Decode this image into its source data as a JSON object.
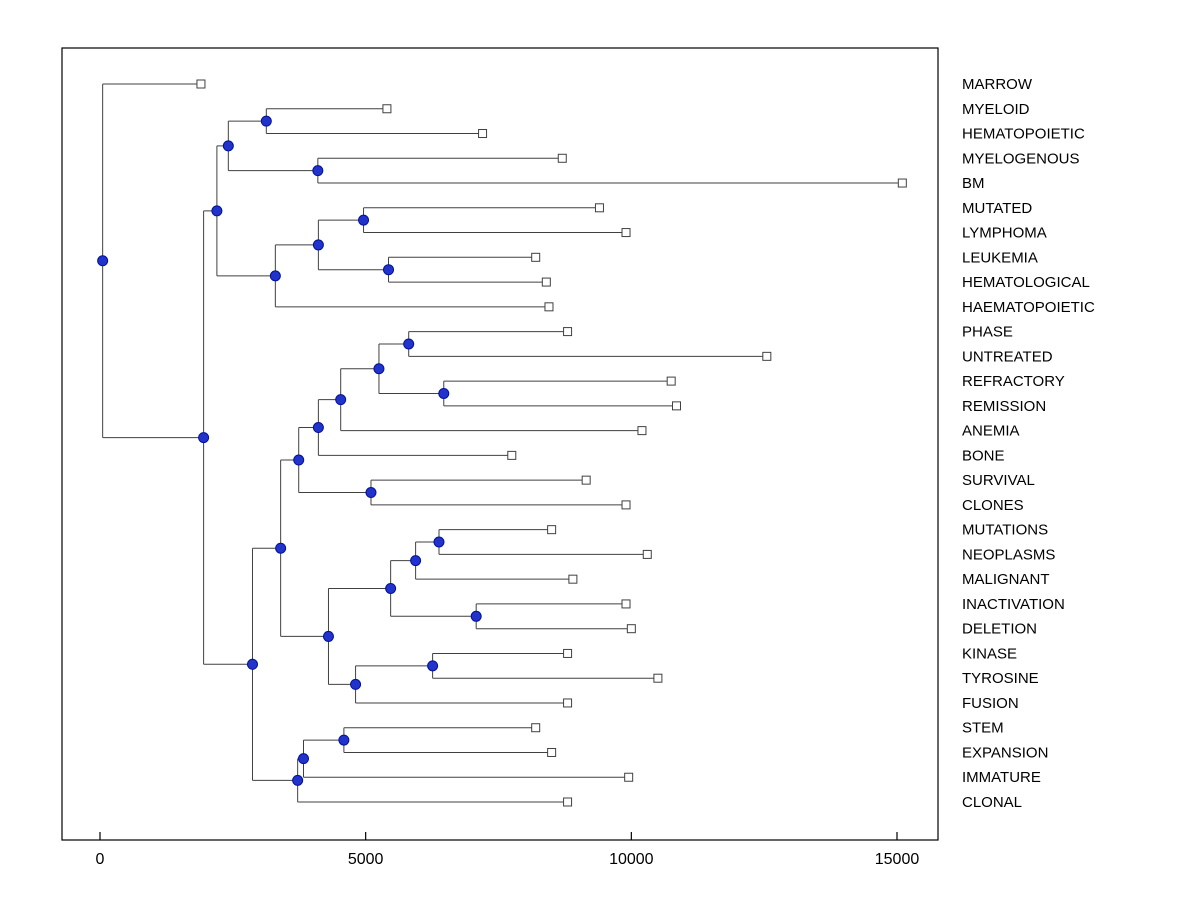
{
  "figure": {
    "background": "#FFFFFF",
    "plot_border_color": "#000000",
    "branch_line_color": "#404040",
    "leaf_marker": {
      "shape": "open-square",
      "size": 8,
      "stroke": "#404040",
      "fill": "#FFFFFF"
    },
    "node_marker": {
      "shape": "filled-circle",
      "radius": 5,
      "fill": "#2233CC",
      "stroke": "#001199"
    }
  },
  "chart_data": {
    "type": "dendrogram",
    "orientation": "left-to-right",
    "title": "",
    "xlabel": "",
    "ylabel": "",
    "x_ticks": [
      0,
      5000,
      10000,
      15000
    ],
    "x_tick_labels": [
      "0",
      "5000",
      "10000",
      "15000"
    ],
    "xlim": [
      -715,
      15772
    ],
    "grid": false,
    "legend": "none",
    "leaves_top_to_bottom": [
      "MARROW",
      "MYELOID",
      "HEMATOPOIETIC",
      "MYELOGENOUS",
      "BM",
      "MUTATED",
      "LYMPHOMA",
      "LEUKEMIA",
      "HEMATOLOGICAL",
      "HAEMATOPOIETIC",
      "PHASE",
      "UNTREATED",
      "REFRACTORY",
      "REMISSION",
      "ANEMIA",
      "BONE",
      "SURVIVAL",
      "CLONES",
      "MUTATIONS",
      "NEOPLASMS",
      "MALIGNANT",
      "INACTIVATION",
      "DELETION",
      "KINASE",
      "TYROSINE",
      "FUSION",
      "STEM",
      "EXPANSION",
      "IMMATURE",
      "CLONAL"
    ],
    "tree": {
      "x": 50,
      "children": [
        {
          "label": "MARROW",
          "x": 1900
        },
        {
          "x": 1950,
          "children": [
            {
              "x": 2200,
              "children": [
                {
                  "x": 2415,
                  "children": [
                    {
                      "x": 3130,
                      "children": [
                        {
                          "label": "MYELOID",
                          "x": 5400
                        },
                        {
                          "label": "HEMATOPOIETIC",
                          "x": 7200
                        }
                      ]
                    },
                    {
                      "x": 4100,
                      "children": [
                        {
                          "label": "MYELOGENOUS",
                          "x": 8700
                        },
                        {
                          "label": "BM",
                          "x": 15100
                        }
                      ]
                    }
                  ]
                },
                {
                  "x": 3300,
                  "children": [
                    {
                      "x": 4110,
                      "children": [
                        {
                          "x": 4960,
                          "children": [
                            {
                              "label": "MUTATED",
                              "x": 9400
                            },
                            {
                              "label": "LYMPHOMA",
                              "x": 9900
                            }
                          ]
                        },
                        {
                          "x": 5430,
                          "children": [
                            {
                              "label": "LEUKEMIA",
                              "x": 8200
                            },
                            {
                              "label": "HEMATOLOGICAL",
                              "x": 8400
                            }
                          ]
                        }
                      ]
                    },
                    {
                      "label": "HAEMATOPOIETIC",
                      "x": 8450
                    }
                  ]
                }
              ]
            },
            {
              "x": 2870,
              "children": [
                {
                  "x": 3400,
                  "children": [
                    {
                      "x": 3740,
                      "children": [
                        {
                          "x": 4110,
                          "children": [
                            {
                              "x": 4530,
                              "children": [
                                {
                                  "x": 5250,
                                  "children": [
                                    {
                                      "x": 5810,
                                      "children": [
                                        {
                                          "label": "PHASE",
                                          "x": 8800
                                        },
                                        {
                                          "label": "UNTREATED",
                                          "x": 12550
                                        }
                                      ]
                                    },
                                    {
                                      "x": 6470,
                                      "children": [
                                        {
                                          "label": "REFRACTORY",
                                          "x": 10750
                                        },
                                        {
                                          "label": "REMISSION",
                                          "x": 10850
                                        }
                                      ]
                                    }
                                  ]
                                },
                                {
                                  "label": "ANEMIA",
                                  "x": 10200
                                }
                              ]
                            },
                            {
                              "label": "BONE",
                              "x": 7750
                            }
                          ]
                        },
                        {
                          "x": 5100,
                          "children": [
                            {
                              "label": "SURVIVAL",
                              "x": 9150
                            },
                            {
                              "label": "CLONES",
                              "x": 9900
                            }
                          ]
                        }
                      ]
                    },
                    {
                      "x": 4300,
                      "children": [
                        {
                          "x": 5470,
                          "children": [
                            {
                              "x": 5940,
                              "children": [
                                {
                                  "x": 6380,
                                  "children": [
                                    {
                                      "label": "MUTATIONS",
                                      "x": 8500
                                    },
                                    {
                                      "label": "NEOPLASMS",
                                      "x": 10300
                                    }
                                  ]
                                },
                                {
                                  "label": "MALIGNANT",
                                  "x": 8900
                                }
                              ]
                            },
                            {
                              "x": 7080,
                              "children": [
                                {
                                  "label": "INACTIVATION",
                                  "x": 9900
                                },
                                {
                                  "label": "DELETION",
                                  "x": 10000
                                }
                              ]
                            }
                          ]
                        },
                        {
                          "x": 4810,
                          "children": [
                            {
                              "x": 6260,
                              "children": [
                                {
                                  "label": "KINASE",
                                  "x": 8800
                                },
                                {
                                  "label": "TYROSINE",
                                  "x": 10500
                                }
                              ]
                            },
                            {
                              "label": "FUSION",
                              "x": 8800
                            }
                          ]
                        }
                      ]
                    }
                  ]
                },
                {
                  "x": 3720,
                  "children": [
                    {
                      "x": 3830,
                      "children": [
                        {
                          "x": 4590,
                          "children": [
                            {
                              "label": "STEM",
                              "x": 8200
                            },
                            {
                              "label": "EXPANSION",
                              "x": 8500
                            }
                          ]
                        },
                        {
                          "label": "IMMATURE",
                          "x": 9950
                        }
                      ]
                    },
                    {
                      "label": "CLONAL",
                      "x": 8800
                    }
                  ]
                }
              ]
            }
          ]
        }
      ]
    }
  }
}
